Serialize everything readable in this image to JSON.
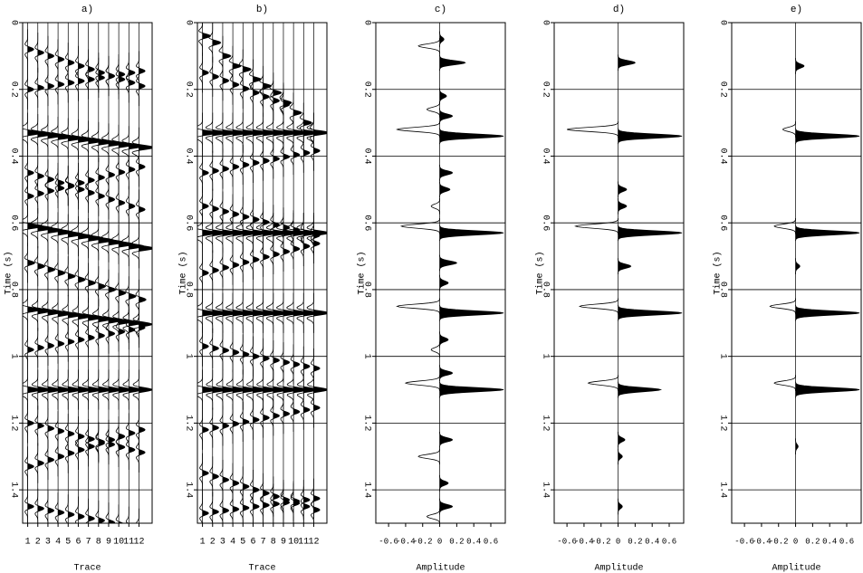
{
  "chart_data": [
    {
      "type": "wiggle",
      "title": "a)",
      "xlabel": "Trace",
      "ylabel": "Time (s)",
      "xlim": [
        0.5,
        13.3
      ],
      "ylim": [
        0,
        1.5
      ],
      "xticks": [
        1,
        2,
        3,
        4,
        5,
        6,
        7,
        8,
        9,
        10,
        11,
        12
      ],
      "yticks": [
        0,
        0.2,
        0.4,
        0.6,
        0.8,
        1,
        1.2,
        1.4
      ],
      "grid": true,
      "color": "#000000",
      "reflectors": [
        {
          "t0": 0.33,
          "dt": 0.004,
          "a": 1.5
        },
        {
          "t0": 0.61,
          "dt": 0.006,
          "a": 1.5
        },
        {
          "t0": 0.86,
          "dt": 0.004,
          "a": 1.3
        },
        {
          "t0": 1.1,
          "dt": 0,
          "a": 1.3
        },
        {
          "t0": 0.08,
          "dt": 0.01,
          "a": 0.6
        },
        {
          "t0": 0.2,
          "dt": -0.005,
          "a": 0.6
        },
        {
          "t0": 0.45,
          "dt": 0.01,
          "a": 0.6
        },
        {
          "t0": 0.52,
          "dt": -0.008,
          "a": 0.6
        },
        {
          "t0": 0.72,
          "dt": 0.01,
          "a": 0.7
        },
        {
          "t0": 0.98,
          "dt": -0.006,
          "a": 0.6
        },
        {
          "t0": 1.2,
          "dt": 0.008,
          "a": 0.6
        },
        {
          "t0": 1.33,
          "dt": -0.01,
          "a": 0.6
        },
        {
          "t0": 1.45,
          "dt": 0.006,
          "a": 0.6
        }
      ]
    },
    {
      "type": "wiggle",
      "title": "b)",
      "xlabel": "Trace",
      "ylabel": "Time (s)",
      "xlim": [
        0.5,
        13.3
      ],
      "ylim": [
        0,
        1.5
      ],
      "xticks": [
        1,
        2,
        3,
        4,
        5,
        6,
        7,
        8,
        9,
        10,
        11,
        12
      ],
      "yticks": [
        0,
        0.2,
        0.4,
        0.6,
        0.8,
        1,
        1.2,
        1.4
      ],
      "grid": true,
      "color": "#000000",
      "first_break": {
        "times": [
          0.04,
          0.06,
          0.1,
          0.13,
          0.14,
          0.17,
          0.19,
          0.21,
          0.24,
          0.27,
          0.3,
          0.33
        ],
        "a": 0.8
      },
      "reflectors": [
        {
          "t0": 0.33,
          "dt": 0,
          "a": 1.5
        },
        {
          "t0": 0.63,
          "dt": 0,
          "a": 1.5
        },
        {
          "t0": 0.87,
          "dt": 0,
          "a": 1.5
        },
        {
          "t0": 1.1,
          "dt": 0,
          "a": 1.4
        },
        {
          "t0": 0.15,
          "dt": 0.012,
          "a": 0.6
        },
        {
          "t0": 0.45,
          "dt": -0.006,
          "a": 0.6
        },
        {
          "t0": 0.55,
          "dt": 0.008,
          "a": 0.6
        },
        {
          "t0": 0.75,
          "dt": -0.008,
          "a": 0.6
        },
        {
          "t0": 0.97,
          "dt": 0.006,
          "a": 0.6
        },
        {
          "t0": 1.22,
          "dt": -0.006,
          "a": 0.6
        },
        {
          "t0": 1.35,
          "dt": 0.01,
          "a": 0.6
        },
        {
          "t0": 1.47,
          "dt": -0.004,
          "a": 0.6
        }
      ]
    },
    {
      "type": "trace",
      "title": "c)",
      "xlabel": "Amplitude",
      "ylabel": "Time (s)",
      "xlim": [
        -0.75,
        0.77
      ],
      "ylim": [
        0,
        1.5
      ],
      "xticks": [
        -0.6,
        -0.4,
        -0.2,
        0,
        0.2,
        0.4,
        0.6
      ],
      "yticks": [
        0,
        0.2,
        0.4,
        0.6,
        0.8,
        1,
        1.2,
        1.4
      ],
      "grid": true,
      "color": "#000000",
      "events": [
        {
          "t": 0.05,
          "a": 0.05
        },
        {
          "t": 0.07,
          "a": -0.25
        },
        {
          "t": 0.12,
          "a": 0.3
        },
        {
          "t": 0.22,
          "a": 0.08
        },
        {
          "t": 0.26,
          "a": -0.15
        },
        {
          "t": 0.28,
          "a": 0.15
        },
        {
          "t": 0.32,
          "a": -0.5
        },
        {
          "t": 0.34,
          "a": 0.75
        },
        {
          "t": 0.45,
          "a": 0.15
        },
        {
          "t": 0.5,
          "a": 0.12
        },
        {
          "t": 0.55,
          "a": -0.1
        },
        {
          "t": 0.61,
          "a": -0.45
        },
        {
          "t": 0.63,
          "a": 0.75
        },
        {
          "t": 0.72,
          "a": 0.2
        },
        {
          "t": 0.78,
          "a": 0.1
        },
        {
          "t": 0.85,
          "a": -0.5
        },
        {
          "t": 0.87,
          "a": 0.75
        },
        {
          "t": 0.95,
          "a": 0.1
        },
        {
          "t": 0.98,
          "a": -0.1
        },
        {
          "t": 1.05,
          "a": 0.15
        },
        {
          "t": 1.08,
          "a": -0.4
        },
        {
          "t": 1.1,
          "a": 0.75
        },
        {
          "t": 1.25,
          "a": 0.15
        },
        {
          "t": 1.3,
          "a": -0.25
        },
        {
          "t": 1.38,
          "a": 0.1
        },
        {
          "t": 1.45,
          "a": 0.15
        },
        {
          "t": 1.48,
          "a": -0.15
        }
      ]
    },
    {
      "type": "trace",
      "title": "d)",
      "xlabel": "Amplitude",
      "ylabel": "Time (s)",
      "xlim": [
        -0.75,
        0.77
      ],
      "ylim": [
        0,
        1.5
      ],
      "xticks": [
        -0.6,
        -0.4,
        -0.2,
        0,
        0.2,
        0.4,
        0.6
      ],
      "yticks": [
        0,
        0.2,
        0.4,
        0.6,
        0.8,
        1,
        1.2,
        1.4
      ],
      "grid": true,
      "color": "#000000",
      "events": [
        {
          "t": 0.12,
          "a": 0.2
        },
        {
          "t": 0.32,
          "a": -0.6
        },
        {
          "t": 0.34,
          "a": 0.75
        },
        {
          "t": 0.5,
          "a": 0.1
        },
        {
          "t": 0.55,
          "a": 0.1
        },
        {
          "t": 0.61,
          "a": -0.5
        },
        {
          "t": 0.63,
          "a": 0.75
        },
        {
          "t": 0.73,
          "a": 0.15
        },
        {
          "t": 0.85,
          "a": -0.45
        },
        {
          "t": 0.87,
          "a": 0.75
        },
        {
          "t": 1.08,
          "a": -0.35
        },
        {
          "t": 1.1,
          "a": 0.5
        },
        {
          "t": 1.25,
          "a": 0.08
        },
        {
          "t": 1.3,
          "a": 0.05
        },
        {
          "t": 1.45,
          "a": 0.05
        }
      ]
    },
    {
      "type": "trace",
      "title": "e)",
      "xlabel": "Amplitude",
      "ylabel": "Time (s)",
      "xlim": [
        -0.75,
        0.77
      ],
      "ylim": [
        0,
        1.5
      ],
      "xticks": [
        -0.6,
        -0.4,
        -0.2,
        0,
        0.2,
        0.4,
        0.6
      ],
      "yticks": [
        0,
        0.2,
        0.4,
        0.6,
        0.8,
        1,
        1.2,
        1.4
      ],
      "grid": true,
      "color": "#000000",
      "events": [
        {
          "t": 0.13,
          "a": 0.1
        },
        {
          "t": 0.32,
          "a": -0.15
        },
        {
          "t": 0.34,
          "a": 0.75
        },
        {
          "t": 0.61,
          "a": -0.25
        },
        {
          "t": 0.63,
          "a": 0.75
        },
        {
          "t": 0.73,
          "a": 0.05
        },
        {
          "t": 0.85,
          "a": -0.3
        },
        {
          "t": 0.87,
          "a": 0.75
        },
        {
          "t": 1.08,
          "a": -0.25
        },
        {
          "t": 1.1,
          "a": 0.75
        },
        {
          "t": 1.27,
          "a": 0.03
        }
      ]
    }
  ]
}
